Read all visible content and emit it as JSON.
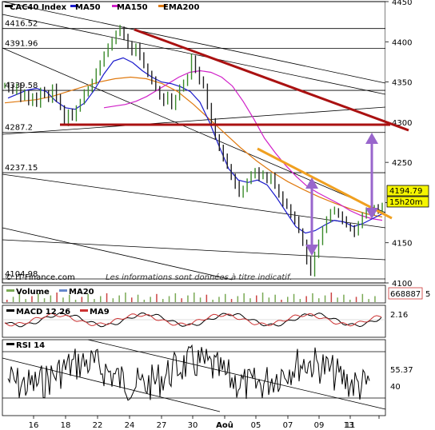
{
  "chart_data": [
    {
      "type": "line",
      "title": "CAC40 Index",
      "legend": [
        {
          "name": "CAC40 Index",
          "color": "#000000"
        },
        {
          "name": "MA50",
          "color": "#1a1acc"
        },
        {
          "name": "MA150",
          "color": "#d020c8"
        },
        {
          "name": "EMA200",
          "color": "#e07a10"
        }
      ],
      "ylim": [
        4100,
        4450
      ],
      "y_ticks": [
        "4450",
        "4400",
        "4350",
        "4300",
        "4250",
        "4200",
        "4150",
        "4100"
      ],
      "x_ticks": [
        "16",
        "18",
        "22",
        "24",
        "27",
        "30",
        "Aoû",
        "05",
        "07",
        "09",
        "11",
        "13"
      ],
      "level_labels": [
        "4416.52",
        "4391.96",
        "4339.58",
        "4287.2",
        "4237.15",
        "4104.98"
      ],
      "levels": [
        4416.52,
        4391.96,
        4339.58,
        4287.2,
        4237.15,
        4104.98
      ],
      "last_price": "4194.79",
      "countdown": "15h20m",
      "credit": "© IT-Finance.com",
      "disclaimer": "Les informations sont données à titre indicatif.",
      "price_path": [
        4346,
        4342,
        4338,
        4345,
        4330,
        4336,
        4325,
        4332,
        4322,
        4340,
        4335,
        4328,
        4344,
        4330,
        4318,
        4300,
        4312,
        4305,
        4318,
        4325,
        4336,
        4342,
        4350,
        4362,
        4374,
        4384,
        4393,
        4402,
        4410,
        4416,
        4406,
        4396,
        4386,
        4395,
        4382,
        4370,
        4360,
        4352,
        4342,
        4332,
        4325,
        4333,
        4320,
        4330,
        4342,
        4350,
        4356,
        4380,
        4365,
        4352,
        4345,
        4320,
        4300,
        4282,
        4268,
        4256,
        4245,
        4232,
        4222,
        4210,
        4218,
        4226,
        4234,
        4240,
        4232,
        4235,
        4228,
        4232,
        4220,
        4210,
        4200,
        4195,
        4185,
        4178,
        4165,
        4150,
        4128,
        4112,
        4136,
        4150,
        4166,
        4180,
        4188,
        4190,
        4185,
        4178,
        4172,
        4168,
        4162,
        4172,
        4185,
        4190,
        4188,
        4194,
        4191,
        4194.79
      ],
      "ma50_path": [
        4330,
        4335,
        4340,
        4342,
        4338,
        4326,
        4318,
        4316,
        4324,
        4340,
        4360,
        4376,
        4380,
        4374,
        4364,
        4356,
        4350,
        4348,
        4344,
        4338,
        4325,
        4300,
        4270,
        4242,
        4228,
        4225,
        4228,
        4222,
        4206,
        4188,
        4170,
        4162,
        4165,
        4172,
        4178,
        4176,
        4170,
        4174,
        4180,
        4186
      ],
      "ma150_path": [
        4318,
        4320,
        4322,
        4326,
        4332,
        4340,
        4348,
        4356,
        4362,
        4364,
        4362,
        4356,
        4345,
        4326,
        4304,
        4280,
        4262,
        4246,
        4232,
        4220,
        4212,
        4205,
        4198,
        4190,
        4184,
        4180,
        4178
      ],
      "ema200_path": [
        4324,
        4326,
        4328,
        4332,
        4338,
        4344,
        4350,
        4354,
        4356,
        4354,
        4348,
        4338,
        4322,
        4304,
        4286,
        4268,
        4252,
        4238,
        4226,
        4216,
        4207,
        4199,
        4192,
        4186,
        4182
      ]
    },
    {
      "type": "bar",
      "title": "Volume",
      "legend": [
        {
          "name": "Volume",
          "color": "#7aaa55"
        },
        {
          "name": "MA20",
          "color": "#6688cc"
        }
      ],
      "last_value": "668887",
      "extra_label": "5"
    },
    {
      "type": "line",
      "title": "MACD 12 26",
      "legend": [
        {
          "name": "MACD 12 26",
          "color": "#000000"
        },
        {
          "name": "MA9",
          "color": "#cc3333"
        }
      ],
      "last_value": "2.16"
    },
    {
      "type": "line",
      "title": "RSI 14",
      "legend": [
        {
          "name": "RSI 14",
          "color": "#000000"
        }
      ],
      "last_value": "55.37",
      "y_ticks": [
        "40"
      ]
    }
  ]
}
